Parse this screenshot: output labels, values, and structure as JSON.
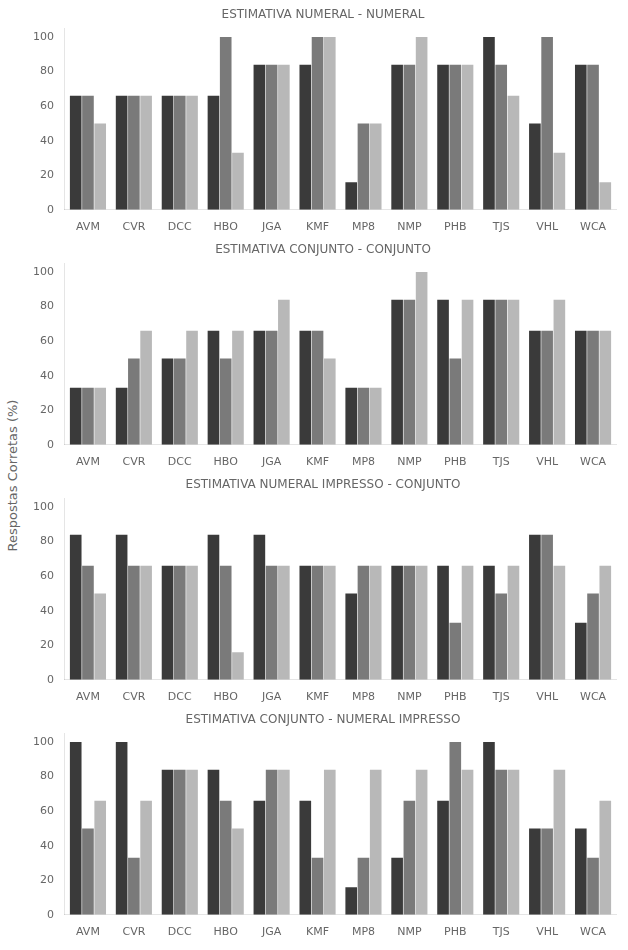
{
  "ylabel": "Respostas Corretas (%)",
  "chart_data": [
    {
      "type": "bar",
      "title": "ESTIMATIVA NUMERAL - NUMERAL",
      "categories": [
        "AVM",
        "CVR",
        "DCC",
        "HBO",
        "JGA",
        "KMF",
        "MP8",
        "NMP",
        "PHB",
        "TJS",
        "VHL",
        "WCA"
      ],
      "series": [
        {
          "color": "#3a3a3a",
          "values": [
            66,
            66,
            66,
            66,
            84,
            84,
            16,
            84,
            84,
            100,
            50,
            84
          ]
        },
        {
          "color": "#7a7a7a",
          "values": [
            66,
            66,
            66,
            100,
            84,
            100,
            50,
            84,
            84,
            84,
            100,
            84
          ]
        },
        {
          "color": "#b8b8b8",
          "values": [
            50,
            66,
            66,
            33,
            84,
            100,
            50,
            100,
            84,
            66,
            33,
            16
          ]
        }
      ],
      "ylim": [
        0,
        105
      ],
      "yticks": [
        0,
        20,
        40,
        60,
        80,
        100
      ],
      "grid": false
    },
    {
      "type": "bar",
      "title": "ESTIMATIVA CONJUNTO - CONJUNTO",
      "categories": [
        "AVM",
        "CVR",
        "DCC",
        "HBO",
        "JGA",
        "KMF",
        "MP8",
        "NMP",
        "PHB",
        "TJS",
        "VHL",
        "WCA"
      ],
      "series": [
        {
          "color": "#3a3a3a",
          "values": [
            33,
            33,
            50,
            66,
            66,
            66,
            33,
            84,
            84,
            84,
            66,
            66
          ]
        },
        {
          "color": "#7a7a7a",
          "values": [
            33,
            50,
            50,
            50,
            66,
            66,
            33,
            84,
            50,
            84,
            66,
            66
          ]
        },
        {
          "color": "#b8b8b8",
          "values": [
            33,
            66,
            66,
            66,
            84,
            50,
            33,
            100,
            84,
            84,
            84,
            66
          ]
        }
      ],
      "ylim": [
        0,
        105
      ],
      "yticks": [
        0,
        20,
        40,
        60,
        80,
        100
      ],
      "grid": false
    },
    {
      "type": "bar",
      "title": "ESTIMATIVA NUMERAL IMPRESSO - CONJUNTO",
      "categories": [
        "AVM",
        "CVR",
        "DCC",
        "HBO",
        "JGA",
        "KMF",
        "MP8",
        "NMP",
        "PHB",
        "TJS",
        "VHL",
        "WCA"
      ],
      "series": [
        {
          "color": "#3a3a3a",
          "values": [
            84,
            84,
            66,
            84,
            84,
            66,
            50,
            66,
            66,
            66,
            84,
            33
          ]
        },
        {
          "color": "#7a7a7a",
          "values": [
            66,
            66,
            66,
            66,
            66,
            66,
            66,
            66,
            33,
            50,
            84,
            50
          ]
        },
        {
          "color": "#b8b8b8",
          "values": [
            50,
            66,
            66,
            16,
            66,
            66,
            66,
            66,
            66,
            66,
            66,
            66
          ]
        }
      ],
      "ylim": [
        0,
        105
      ],
      "yticks": [
        0,
        20,
        40,
        60,
        80,
        100
      ],
      "grid": false
    },
    {
      "type": "bar",
      "title": "ESTIMATIVA CONJUNTO - NUMERAL IMPRESSO",
      "categories": [
        "AVM",
        "CVR",
        "DCC",
        "HBO",
        "JGA",
        "KMF",
        "MP8",
        "NMP",
        "PHB",
        "TJS",
        "VHL",
        "WCA"
      ],
      "series": [
        {
          "color": "#3a3a3a",
          "values": [
            100,
            100,
            84,
            84,
            66,
            66,
            16,
            33,
            66,
            100,
            50,
            50
          ]
        },
        {
          "color": "#7a7a7a",
          "values": [
            50,
            33,
            84,
            66,
            84,
            33,
            33,
            66,
            100,
            84,
            50,
            33
          ]
        },
        {
          "color": "#b8b8b8",
          "values": [
            66,
            66,
            84,
            50,
            84,
            84,
            84,
            84,
            84,
            84,
            84,
            66
          ]
        }
      ],
      "ylim": [
        0,
        105
      ],
      "yticks": [
        0,
        20,
        40,
        60,
        80,
        100
      ],
      "grid": false
    }
  ]
}
